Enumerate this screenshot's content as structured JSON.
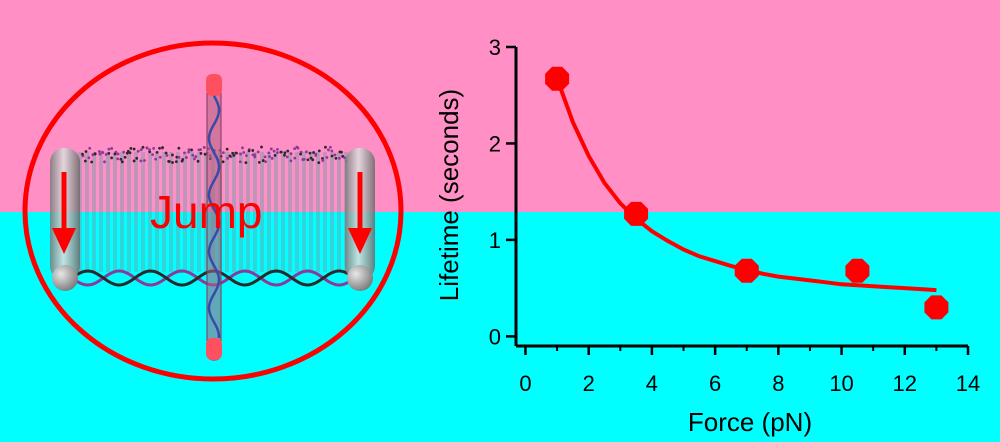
{
  "colors": {
    "top_background": "#ff8fc4",
    "bottom_background": "#00ffff",
    "accent_red": "#ff0000",
    "cylinder_gray": "#9a9a9a",
    "dna_purple": "#8a3a9a",
    "dna_dark": "#2a2a2a",
    "dna_blue": "#3a4aa8"
  },
  "illustration": {
    "label": "Jump",
    "icons": [
      "red-ellipse-outline",
      "gray-cylinder",
      "down-arrow-icon",
      "dna-helix",
      "vertical-rod"
    ]
  },
  "chart_data": {
    "type": "scatter",
    "title": "",
    "xlabel": "Force (pN)",
    "ylabel": "Lifetime (seconds)",
    "xlim": [
      -0.3,
      14
    ],
    "ylim": [
      -0.1,
      3
    ],
    "xticks": [
      0,
      2,
      4,
      6,
      8,
      10,
      12,
      14
    ],
    "yticks": [
      0,
      1,
      2,
      3
    ],
    "grid": false,
    "legend": "none",
    "series": [
      {
        "kind": "points",
        "marker": "octagon",
        "x": [
          1.0,
          3.5,
          7.0,
          10.5,
          13.0
        ],
        "y": [
          2.67,
          1.27,
          0.68,
          0.68,
          0.3
        ]
      },
      {
        "kind": "fit-curve",
        "x": [
          1.0,
          1.5,
          2.0,
          2.5,
          3.0,
          3.5,
          4.0,
          4.5,
          5.0,
          5.5,
          6.0,
          6.5,
          7.0,
          7.5,
          8.0,
          8.5,
          9.0,
          9.5,
          10.0,
          10.5,
          11.0,
          11.5,
          12.0,
          12.5,
          13.0
        ],
        "y": [
          2.67,
          2.22,
          1.87,
          1.59,
          1.38,
          1.22,
          1.09,
          0.99,
          0.9,
          0.83,
          0.78,
          0.73,
          0.69,
          0.65,
          0.62,
          0.6,
          0.58,
          0.56,
          0.54,
          0.53,
          0.52,
          0.51,
          0.5,
          0.49,
          0.48
        ]
      }
    ]
  }
}
